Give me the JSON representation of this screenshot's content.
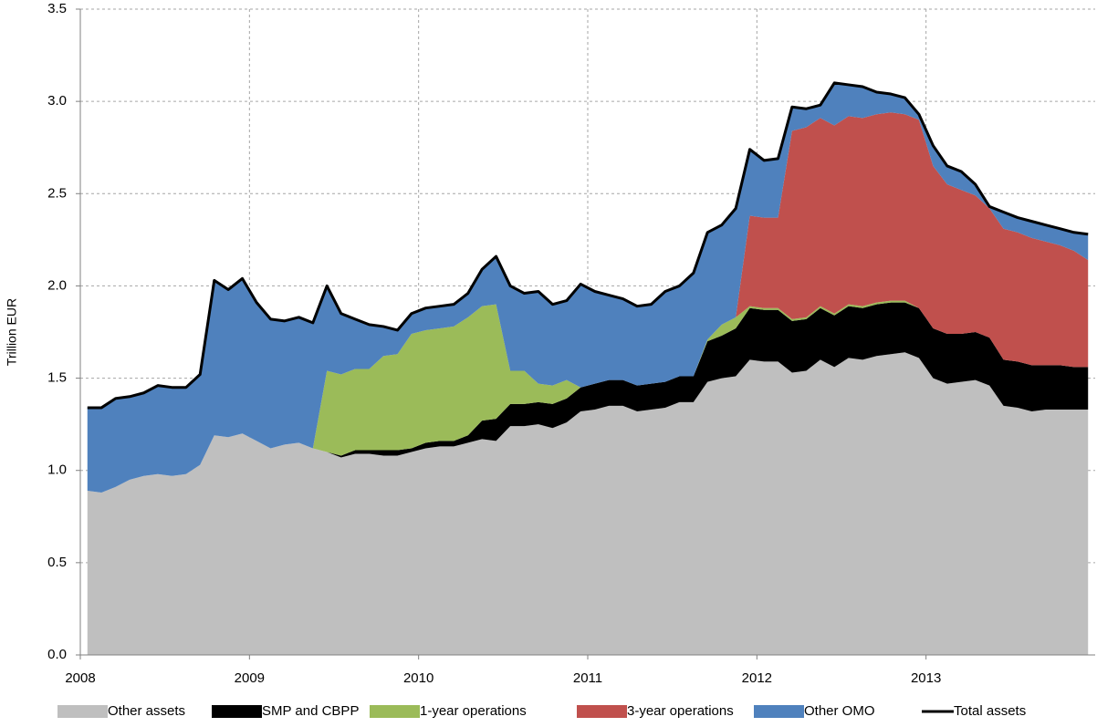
{
  "chart_data": {
    "type": "stacked_area",
    "y_label": "Trillion EUR",
    "xlim": [
      2008,
      2014
    ],
    "xticks": [
      2008,
      2009,
      2010,
      2011,
      2012,
      2013
    ],
    "ylim": [
      0,
      3.5
    ],
    "yticks": [
      {
        "value": 0,
        "label": "0.0"
      },
      {
        "value": 0.5,
        "label": "0.5"
      },
      {
        "value": 1,
        "label": "1.0"
      },
      {
        "value": 1.5,
        "label": "1.5"
      },
      {
        "value": 2,
        "label": "2.0"
      },
      {
        "value": 2.5,
        "label": "2.5"
      },
      {
        "value": 3,
        "label": "3.0"
      },
      {
        "value": 3.5,
        "label": "3.5"
      }
    ],
    "grid": true,
    "legend": "bottom",
    "x": [
      2008.042,
      2008.125,
      2008.208,
      2008.292,
      2008.375,
      2008.458,
      2008.542,
      2008.625,
      2008.708,
      2008.792,
      2008.875,
      2008.958,
      2009.042,
      2009.125,
      2009.208,
      2009.292,
      2009.375,
      2009.458,
      2009.542,
      2009.625,
      2009.708,
      2009.792,
      2009.875,
      2009.958,
      2010.042,
      2010.125,
      2010.208,
      2010.292,
      2010.375,
      2010.458,
      2010.542,
      2010.625,
      2010.708,
      2010.792,
      2010.875,
      2010.958,
      2011.042,
      2011.125,
      2011.208,
      2011.292,
      2011.375,
      2011.458,
      2011.542,
      2011.625,
      2011.708,
      2011.792,
      2011.875,
      2011.958,
      2012.042,
      2012.125,
      2012.208,
      2012.292,
      2012.375,
      2012.458,
      2012.542,
      2012.625,
      2012.708,
      2012.792,
      2012.875,
      2012.958,
      2013.042,
      2013.125,
      2013.208,
      2013.292,
      2013.375,
      2013.458,
      2013.542,
      2013.625,
      2013.708,
      2013.792,
      2013.875,
      2013.958
    ],
    "series": [
      {
        "name": "Other assets",
        "color": "#bfbfbf",
        "values": [
          0.89,
          0.88,
          0.91,
          0.95,
          0.97,
          0.98,
          0.97,
          0.98,
          1.03,
          1.19,
          1.18,
          1.2,
          1.16,
          1.12,
          1.14,
          1.15,
          1.12,
          1.1,
          1.07,
          1.09,
          1.09,
          1.08,
          1.08,
          1.1,
          1.12,
          1.13,
          1.13,
          1.15,
          1.17,
          1.16,
          1.24,
          1.24,
          1.25,
          1.23,
          1.26,
          1.32,
          1.33,
          1.35,
          1.35,
          1.32,
          1.33,
          1.34,
          1.37,
          1.37,
          1.48,
          1.5,
          1.51,
          1.6,
          1.59,
          1.59,
          1.53,
          1.54,
          1.6,
          1.56,
          1.61,
          1.6,
          1.62,
          1.63,
          1.64,
          1.61,
          1.5,
          1.47,
          1.48,
          1.49,
          1.46,
          1.35,
          1.34,
          1.32,
          1.33,
          1.33,
          1.33,
          1.33
        ]
      },
      {
        "name": "SMP and CBPP",
        "color": "#000000",
        "values": [
          0,
          0,
          0,
          0,
          0,
          0,
          0,
          0,
          0,
          0,
          0,
          0,
          0,
          0,
          0,
          0,
          0,
          0,
          0.01,
          0.02,
          0.02,
          0.03,
          0.03,
          0.02,
          0.03,
          0.03,
          0.03,
          0.04,
          0.1,
          0.12,
          0.12,
          0.12,
          0.12,
          0.13,
          0.13,
          0.13,
          0.14,
          0.14,
          0.14,
          0.14,
          0.14,
          0.14,
          0.14,
          0.14,
          0.22,
          0.23,
          0.26,
          0.28,
          0.28,
          0.28,
          0.28,
          0.28,
          0.28,
          0.28,
          0.28,
          0.28,
          0.28,
          0.28,
          0.27,
          0.27,
          0.27,
          0.27,
          0.26,
          0.26,
          0.26,
          0.25,
          0.25,
          0.25,
          0.24,
          0.24,
          0.23,
          0.23
        ]
      },
      {
        "name": "1-year operations",
        "color": "#9bbb59",
        "values": [
          0,
          0,
          0,
          0,
          0,
          0,
          0,
          0,
          0,
          0,
          0,
          0,
          0,
          0,
          0,
          0,
          0,
          0.44,
          0.44,
          0.44,
          0.44,
          0.51,
          0.52,
          0.62,
          0.61,
          0.61,
          0.62,
          0.64,
          0.62,
          0.62,
          0.18,
          0.18,
          0.1,
          0.1,
          0.1,
          0,
          0,
          0,
          0,
          0,
          0,
          0,
          0,
          0,
          0.01,
          0.06,
          0.06,
          0.01,
          0.01,
          0.01,
          0.01,
          0.01,
          0.01,
          0.01,
          0.01,
          0.01,
          0.01,
          0.01,
          0.01,
          0,
          0,
          0,
          0,
          0,
          0,
          0,
          0,
          0,
          0,
          0,
          0,
          0
        ]
      },
      {
        "name": "3-year operations",
        "color": "#c0504d",
        "values": [
          0,
          0,
          0,
          0,
          0,
          0,
          0,
          0,
          0,
          0,
          0,
          0,
          0,
          0,
          0,
          0,
          0,
          0,
          0,
          0,
          0,
          0,
          0,
          0,
          0,
          0,
          0,
          0,
          0,
          0,
          0,
          0,
          0,
          0,
          0,
          0,
          0,
          0,
          0,
          0,
          0,
          0,
          0,
          0,
          0,
          0,
          0,
          0.49,
          0.49,
          0.49,
          1.02,
          1.03,
          1.02,
          1.02,
          1.02,
          1.02,
          1.02,
          1.02,
          1.01,
          1.02,
          0.88,
          0.81,
          0.78,
          0.74,
          0.7,
          0.71,
          0.7,
          0.69,
          0.67,
          0.65,
          0.63,
          0.58
        ]
      },
      {
        "name": "Other OMO",
        "color": "#4f81bd",
        "values": [
          0.45,
          0.46,
          0.48,
          0.45,
          0.45,
          0.48,
          0.48,
          0.47,
          0.49,
          0.84,
          0.8,
          0.84,
          0.75,
          0.7,
          0.67,
          0.68,
          0.68,
          0.46,
          0.33,
          0.27,
          0.24,
          0.16,
          0.13,
          0.11,
          0.12,
          0.12,
          0.12,
          0.13,
          0.2,
          0.26,
          0.46,
          0.42,
          0.5,
          0.44,
          0.43,
          0.56,
          0.5,
          0.46,
          0.44,
          0.43,
          0.43,
          0.49,
          0.49,
          0.56,
          0.58,
          0.54,
          0.59,
          0.36,
          0.31,
          0.32,
          0.13,
          0.1,
          0.07,
          0.23,
          0.17,
          0.17,
          0.12,
          0.1,
          0.09,
          0.03,
          0.11,
          0.1,
          0.1,
          0.06,
          0.01,
          0.09,
          0.08,
          0.09,
          0.09,
          0.09,
          0.1,
          0.14
        ]
      }
    ],
    "line_series": [
      {
        "name": "Total assets",
        "color": "#000000",
        "values": [
          1.34,
          1.34,
          1.39,
          1.4,
          1.42,
          1.46,
          1.45,
          1.45,
          1.52,
          2.03,
          1.98,
          2.04,
          1.91,
          1.82,
          1.81,
          1.83,
          1.8,
          2.0,
          1.85,
          1.82,
          1.79,
          1.78,
          1.76,
          1.85,
          1.88,
          1.89,
          1.9,
          1.96,
          2.09,
          2.16,
          2.0,
          1.96,
          1.97,
          1.9,
          1.92,
          2.01,
          1.97,
          1.95,
          1.93,
          1.89,
          1.9,
          1.97,
          2.0,
          2.07,
          2.29,
          2.33,
          2.42,
          2.74,
          2.68,
          2.69,
          2.97,
          2.96,
          2.98,
          3.1,
          3.09,
          3.08,
          3.05,
          3.04,
          3.02,
          2.93,
          2.76,
          2.65,
          2.62,
          2.55,
          2.43,
          2.4,
          2.37,
          2.35,
          2.33,
          2.31,
          2.29,
          2.28
        ]
      }
    ]
  }
}
